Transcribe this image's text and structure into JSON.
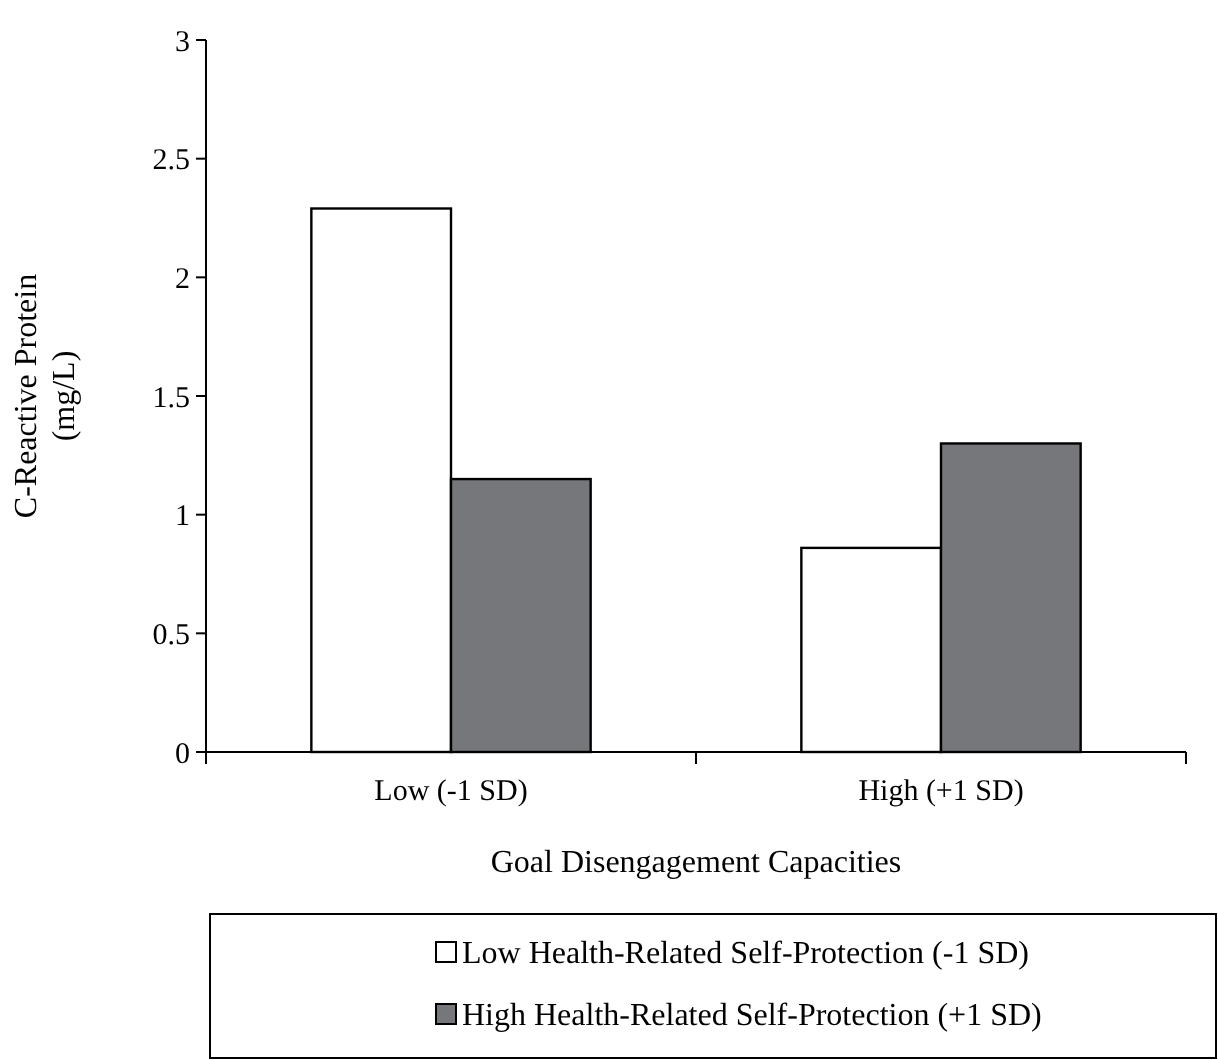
{
  "chart_data": {
    "type": "bar",
    "xlabel": "Goal Disengagement Capacities",
    "ylabel": "C-Reactive Protein\n(mg/L)",
    "categories": [
      "Low (-1 SD)",
      "High (+1 SD)"
    ],
    "series": [
      {
        "name": "Low Health-Related Self-Protection (-1 SD)",
        "color": "#ffffff",
        "values": [
          2.29,
          0.86
        ]
      },
      {
        "name": "High Health-Related Self-Protection (+1 SD)",
        "color": "#76777a",
        "values": [
          1.15,
          1.3
        ]
      }
    ],
    "ylim": [
      0,
      3
    ],
    "yticks": [
      0,
      0.5,
      1,
      1.5,
      2,
      2.5,
      3
    ],
    "legend": "bottom"
  }
}
